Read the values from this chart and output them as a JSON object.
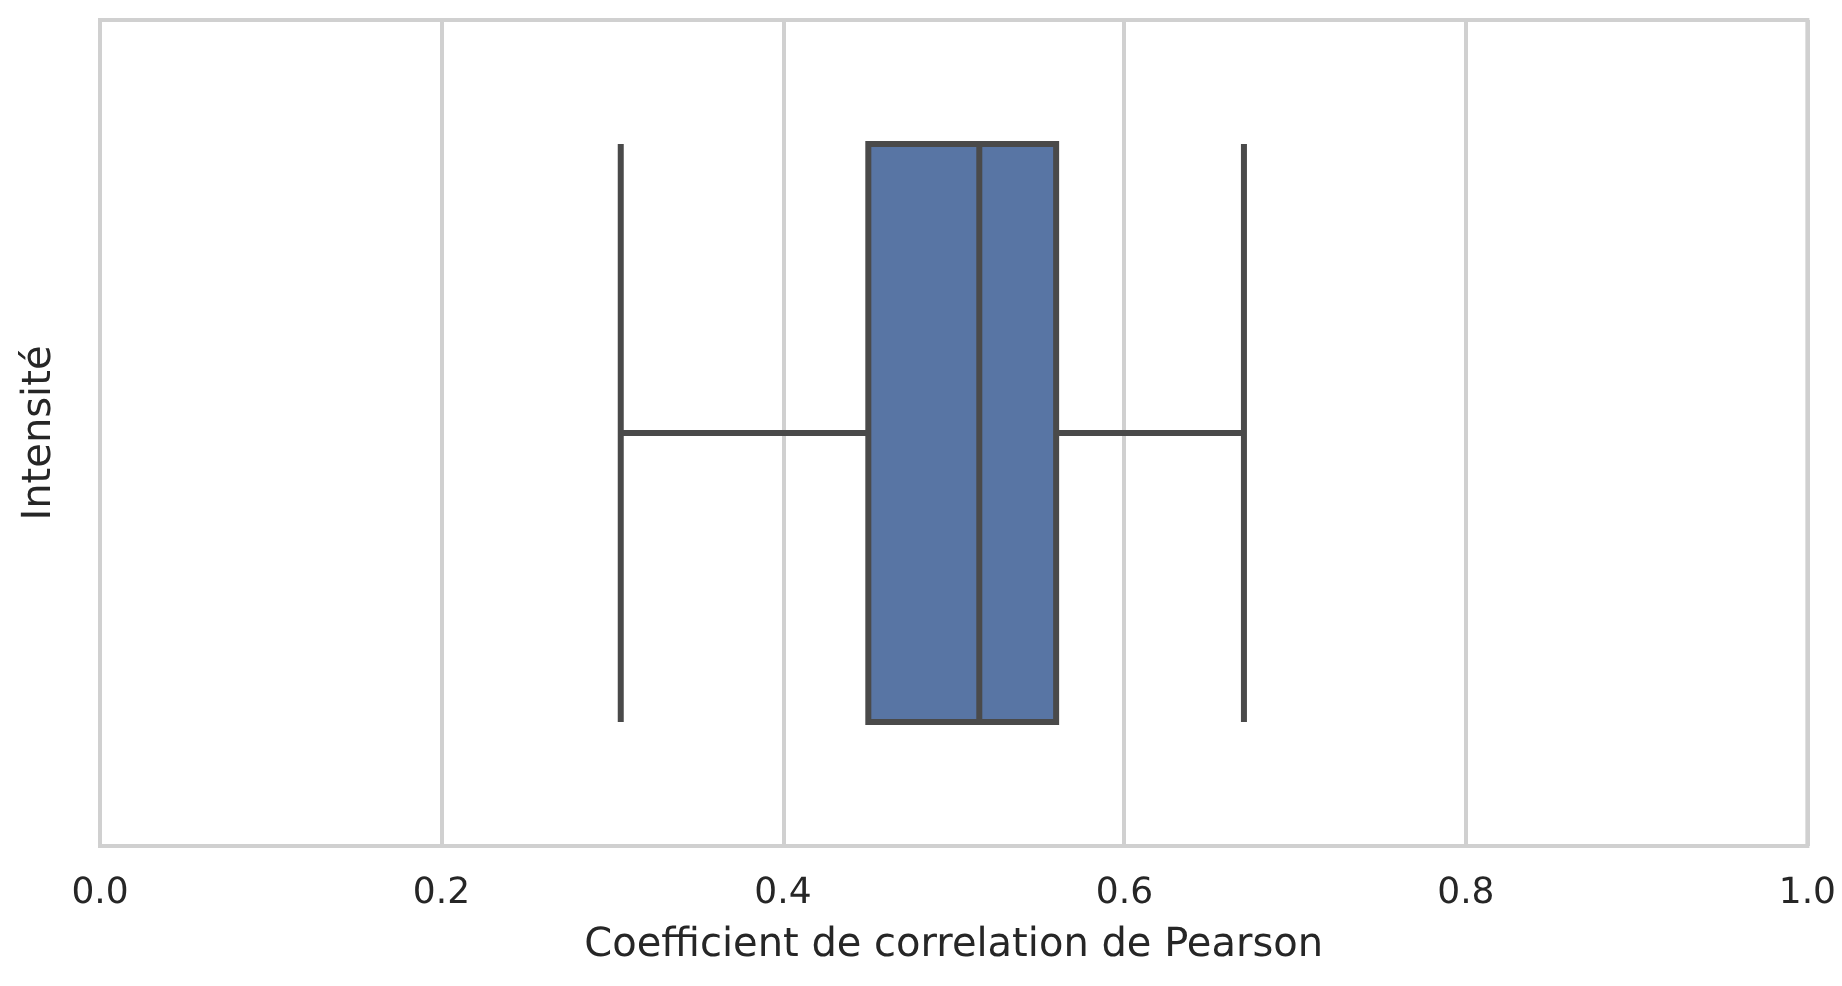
{
  "chart_data": {
    "type": "box",
    "orientation": "horizontal",
    "xlabel": "Coefficient de correlation de Pearson",
    "ylabel": "Intensité",
    "categories": [
      null
    ],
    "series": [
      {
        "color": "#5875a4",
        "boxes": [
          {
            "low": 0.305,
            "q1": 0.45,
            "median": 0.515,
            "q3": 0.56,
            "high": 0.67
          }
        ]
      }
    ],
    "xlim": [
      0,
      1
    ],
    "xticks": [
      {
        "value": 0,
        "label": "0.0"
      },
      {
        "value": 0.2,
        "label": "0.2"
      },
      {
        "value": 0.4,
        "label": "0.4"
      },
      {
        "value": 0.6,
        "label": "0.6"
      },
      {
        "value": 0.8,
        "label": "0.8"
      },
      {
        "value": 1,
        "label": "1.0"
      }
    ],
    "grid": "x"
  }
}
